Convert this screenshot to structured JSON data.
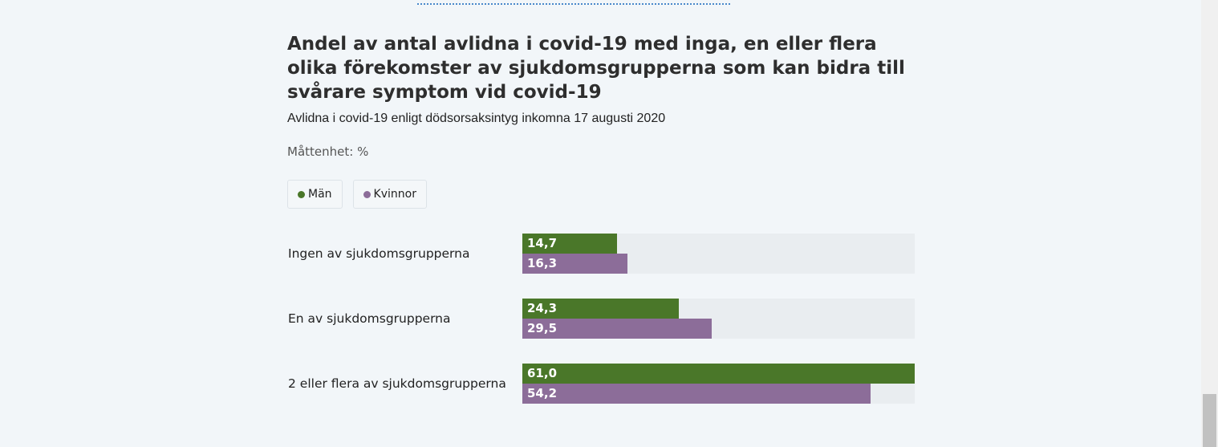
{
  "colors": {
    "men": "#4a7729",
    "women": "#8c6d99"
  },
  "chart_data": {
    "type": "bar",
    "orientation": "horizontal",
    "title": "Andel av antal avlidna i covid-19 med inga, en eller flera olika förekomster av sjukdomsgrupperna som kan bidra till svårare symptom vid covid-19",
    "subtitle": "Avlidna i covid-19 enligt dödsorsaksintyg inkomna 17 augusti 2020",
    "unit_label": "Måttenhet: %",
    "categories": [
      "Ingen av sjukdomsgrupperna",
      "En av sjukdomsgrupperna",
      "2 eller flera av sjukdomsgrupperna"
    ],
    "series": [
      {
        "name": "Män",
        "values": [
          14.7,
          24.3,
          61.0
        ],
        "labels": [
          "14,7",
          "24,3",
          "61,0"
        ]
      },
      {
        "name": "Kvinnor",
        "values": [
          16.3,
          29.5,
          54.2
        ],
        "labels": [
          "16,3",
          "29,5",
          "54,2"
        ]
      }
    ],
    "xlim": [
      0,
      61.0
    ],
    "legend": "top-left"
  }
}
